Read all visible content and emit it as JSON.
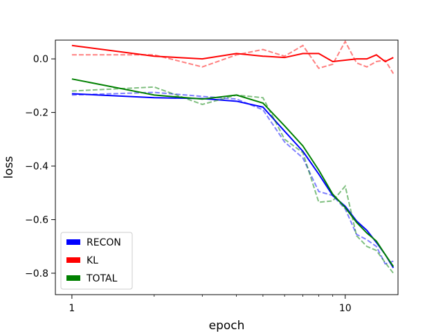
{
  "chart_data": {
    "type": "line",
    "xlabel": "epoch",
    "ylabel": "loss",
    "xscale": "log",
    "xlim": [
      0.87,
      15.6
    ],
    "ylim": [
      -0.88,
      0.07
    ],
    "xticks": [
      {
        "value": 1,
        "label": "1"
      },
      {
        "value": 10,
        "label": "10"
      }
    ],
    "yticks": [
      {
        "value": 0.0,
        "label": "0.0"
      },
      {
        "value": -0.2,
        "label": "−0.2"
      },
      {
        "value": -0.4,
        "label": "−0.4"
      },
      {
        "value": -0.6,
        "label": "−0.6"
      },
      {
        "value": -0.8,
        "label": "−0.8"
      }
    ],
    "grid": false,
    "legend_position": "lower-left",
    "x": [
      1,
      2,
      3,
      4,
      5,
      6,
      7,
      8,
      9,
      10,
      11,
      12,
      13,
      14,
      15
    ],
    "series": [
      {
        "name": "RECON",
        "color": "#0000ff",
        "raw": [
          -0.135,
          -0.125,
          -0.14,
          -0.15,
          -0.19,
          -0.31,
          -0.37,
          -0.495,
          -0.51,
          -0.56,
          -0.655,
          -0.675,
          -0.7,
          -0.765,
          -0.755
        ],
        "smoothed": [
          -0.13,
          -0.145,
          -0.148,
          -0.158,
          -0.18,
          -0.27,
          -0.345,
          -0.43,
          -0.51,
          -0.55,
          -0.605,
          -0.64,
          -0.685,
          -0.73,
          -0.78
        ]
      },
      {
        "name": "KL",
        "color": "#ff0000",
        "raw": [
          0.015,
          0.015,
          -0.03,
          0.015,
          0.035,
          0.01,
          0.05,
          -0.035,
          -0.02,
          0.065,
          -0.015,
          -0.03,
          -0.01,
          -0.005,
          -0.055
        ],
        "smoothed": [
          0.05,
          0.01,
          0.0,
          0.02,
          0.01,
          0.005,
          0.02,
          0.02,
          -0.01,
          -0.005,
          0.0,
          0.0,
          0.015,
          -0.01,
          0.005
        ]
      },
      {
        "name": "TOTAL",
        "color": "#008000",
        "raw": [
          -0.12,
          -0.105,
          -0.17,
          -0.135,
          -0.145,
          -0.3,
          -0.35,
          -0.535,
          -0.53,
          -0.475,
          -0.66,
          -0.7,
          -0.715,
          -0.76,
          -0.8
        ],
        "smoothed": [
          -0.075,
          -0.135,
          -0.15,
          -0.135,
          -0.165,
          -0.25,
          -0.325,
          -0.415,
          -0.505,
          -0.555,
          -0.61,
          -0.65,
          -0.68,
          -0.73,
          -0.775
        ]
      }
    ]
  }
}
